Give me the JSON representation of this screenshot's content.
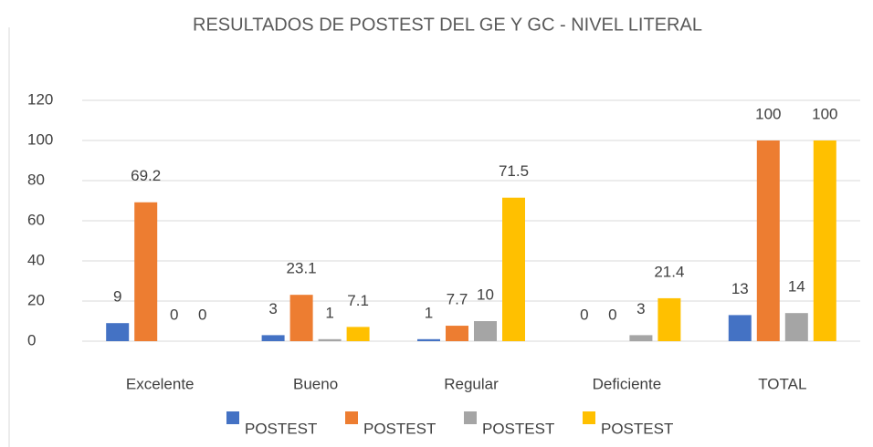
{
  "chart_data": {
    "type": "bar",
    "title": "RESULTADOS DE POSTEST DEL GE Y GC - NIVEL LITERAL",
    "categories": [
      "Excelente",
      "Bueno",
      "Regular",
      "Deficiente",
      "TOTAL"
    ],
    "series": [
      {
        "name": "POSTEST",
        "color": "#4472c4",
        "values": [
          9,
          3,
          1,
          0,
          13
        ]
      },
      {
        "name": "POSTEST",
        "color": "#ed7d31",
        "values": [
          69.2,
          23.1,
          7.7,
          0,
          100
        ]
      },
      {
        "name": "POSTEST",
        "color": "#a5a5a5",
        "values": [
          0,
          1,
          10,
          3,
          14
        ]
      },
      {
        "name": "POSTEST",
        "color": "#ffc000",
        "values": [
          0,
          7.1,
          71.5,
          21.4,
          100
        ]
      }
    ],
    "ylim": [
      0,
      120
    ],
    "yticks": [
      0,
      20,
      40,
      60,
      80,
      100,
      120
    ],
    "grid": true,
    "legend": "bottom"
  }
}
